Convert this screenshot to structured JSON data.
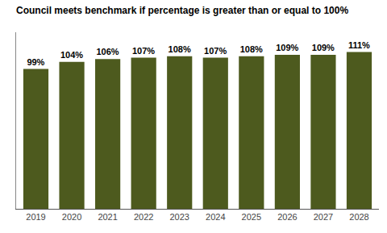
{
  "chart_data": {
    "type": "bar",
    "title": "Council meets benchmark if percentage is greater than or equal to 100%",
    "categories": [
      "2019",
      "2020",
      "2021",
      "2022",
      "2023",
      "2024",
      "2025",
      "2026",
      "2027",
      "2028"
    ],
    "values": [
      99,
      104,
      106,
      107,
      108,
      107,
      108,
      109,
      109,
      111
    ],
    "value_labels": [
      "99%",
      "104%",
      "106%",
      "107%",
      "108%",
      "107%",
      "108%",
      "109%",
      "109%",
      "111%"
    ],
    "data_labels": true,
    "color": "#4d5a1e",
    "ylim": [
      0,
      125
    ],
    "tick_labels": "x",
    "grid": false
  }
}
